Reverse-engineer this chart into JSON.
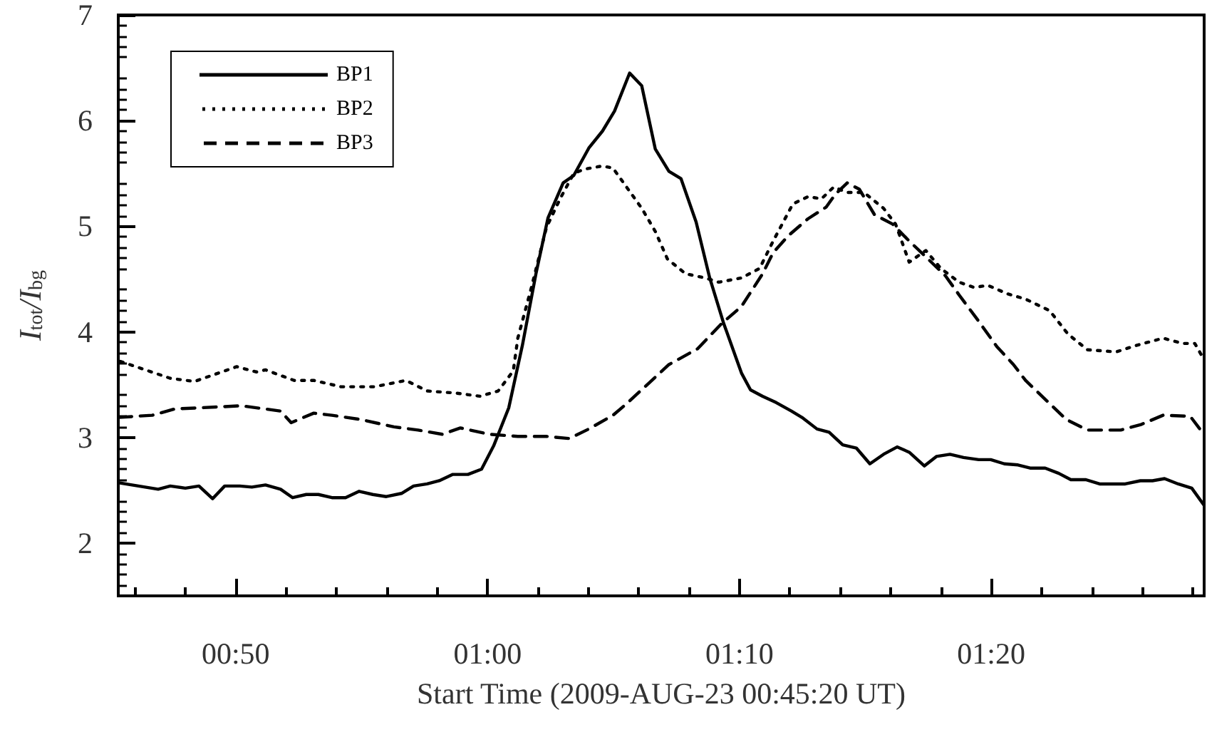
{
  "chart_data": {
    "type": "line",
    "xlabel": "Start Time (2009-AUG-23 00:45:20 UT)",
    "ylabel": "I$_{tot}$/I$_{bg}$",
    "legend": "top left",
    "marker": "none",
    "grid": false,
    "xlim": [
      0.7556,
      1.4742
    ],
    "xticks": [
      {
        "value": 0.7667,
        "label": null
      },
      {
        "value": 0.8,
        "label": null
      },
      {
        "value": 0.8333,
        "label": "00:50"
      },
      {
        "value": 0.8667,
        "label": null
      },
      {
        "value": 0.9,
        "label": null
      },
      {
        "value": 0.9333,
        "label": null
      },
      {
        "value": 0.9667,
        "label": null
      },
      {
        "value": 1.0,
        "label": "01:00"
      },
      {
        "value": 1.0333,
        "label": null
      },
      {
        "value": 1.0667,
        "label": null
      },
      {
        "value": 1.1,
        "label": null
      },
      {
        "value": 1.1333,
        "label": null
      },
      {
        "value": 1.1667,
        "label": "01:10"
      },
      {
        "value": 1.2,
        "label": null
      },
      {
        "value": 1.2333,
        "label": null
      },
      {
        "value": 1.2667,
        "label": null
      },
      {
        "value": 1.3,
        "label": null
      },
      {
        "value": 1.3333,
        "label": "01:20"
      },
      {
        "value": 1.3667,
        "label": null
      },
      {
        "value": 1.4,
        "label": null
      },
      {
        "value": 1.4333,
        "label": null
      },
      {
        "value": 1.4667,
        "label": null
      }
    ],
    "ylim": [
      1.5,
      7
    ],
    "yticks": [
      2,
      3,
      4,
      5,
      6,
      7
    ],
    "series": [
      {
        "name": "BP1",
        "color": "#000000",
        "line_style": "solid",
        "x": [
          0.756,
          0.782,
          0.79,
          0.8,
          0.809,
          0.818,
          0.826,
          0.836,
          0.844,
          0.853,
          0.863,
          0.871,
          0.88,
          0.888,
          0.897,
          0.906,
          0.915,
          0.924,
          0.933,
          0.943,
          0.951,
          0.96,
          0.968,
          0.977,
          0.987,
          0.996,
          1.004,
          1.014,
          1.023,
          1.032,
          1.04,
          1.05,
          1.057,
          1.067,
          1.076,
          1.084,
          1.094,
          1.102,
          1.111,
          1.12,
          1.128,
          1.138,
          1.147,
          1.156,
          1.168,
          1.174,
          1.182,
          1.191,
          1.201,
          1.208,
          1.218,
          1.226,
          1.235,
          1.244,
          1.253,
          1.262,
          1.271,
          1.279,
          1.289,
          1.297,
          1.306,
          1.315,
          1.325,
          1.333,
          1.342,
          1.351,
          1.359,
          1.369,
          1.378,
          1.386,
          1.396,
          1.405,
          1.422,
          1.432,
          1.44,
          1.448,
          1.457,
          1.466,
          1.474
        ],
        "values": [
          2.57,
          2.51,
          2.54,
          2.52,
          2.54,
          2.42,
          2.54,
          2.54,
          2.53,
          2.55,
          2.51,
          2.43,
          2.46,
          2.46,
          2.43,
          2.43,
          2.49,
          2.46,
          2.44,
          2.47,
          2.54,
          2.56,
          2.59,
          2.65,
          2.65,
          2.7,
          2.92,
          3.28,
          3.87,
          4.55,
          5.08,
          5.41,
          5.48,
          5.74,
          5.9,
          6.09,
          6.45,
          6.33,
          5.73,
          5.52,
          5.45,
          5.04,
          4.51,
          4.09,
          3.61,
          3.45,
          3.39,
          3.33,
          3.25,
          3.19,
          3.08,
          3.05,
          2.93,
          2.9,
          2.75,
          2.84,
          2.91,
          2.86,
          2.73,
          2.82,
          2.84,
          2.81,
          2.79,
          2.79,
          2.75,
          2.74,
          2.71,
          2.71,
          2.66,
          2.6,
          2.6,
          2.56,
          2.56,
          2.59,
          2.59,
          2.61,
          2.56,
          2.52,
          2.36
        ]
      },
      {
        "name": "BP2",
        "color": "#000000",
        "line_style": "dotted",
        "x": [
          0.757,
          0.79,
          0.806,
          0.834,
          0.847,
          0.853,
          0.872,
          0.885,
          0.903,
          0.925,
          0.946,
          0.96,
          0.979,
          0.995,
          1.007,
          1.017,
          1.02,
          1.029,
          1.039,
          1.048,
          1.057,
          1.064,
          1.076,
          1.083,
          1.092,
          1.102,
          1.111,
          1.119,
          1.131,
          1.144,
          1.153,
          1.168,
          1.18,
          1.189,
          1.202,
          1.212,
          1.221,
          1.229,
          1.238,
          1.249,
          1.262,
          1.27,
          1.279,
          1.29,
          1.3,
          1.312,
          1.322,
          1.331,
          1.344,
          1.356,
          1.372,
          1.384,
          1.397,
          1.416,
          1.429,
          1.447,
          1.46,
          1.468,
          1.474
        ],
        "values": [
          3.72,
          3.56,
          3.53,
          3.67,
          3.62,
          3.64,
          3.54,
          3.54,
          3.48,
          3.48,
          3.54,
          3.44,
          3.42,
          3.39,
          3.44,
          3.63,
          3.94,
          4.42,
          4.99,
          5.26,
          5.5,
          5.54,
          5.57,
          5.55,
          5.37,
          5.17,
          4.95,
          4.69,
          4.55,
          4.51,
          4.47,
          4.51,
          4.6,
          4.86,
          5.21,
          5.28,
          5.26,
          5.37,
          5.32,
          5.32,
          5.17,
          5.02,
          4.66,
          4.77,
          4.6,
          4.47,
          4.42,
          4.44,
          4.36,
          4.31,
          4.2,
          3.98,
          3.83,
          3.81,
          3.87,
          3.94,
          3.89,
          3.89,
          3.74
        ]
      },
      {
        "name": "BP3",
        "color": "#000000",
        "line_style": "dashed",
        "x": [
          0.756,
          0.778,
          0.793,
          0.809,
          0.837,
          0.863,
          0.87,
          0.885,
          0.897,
          0.916,
          0.938,
          0.954,
          0.97,
          0.982,
          1.001,
          1.02,
          1.039,
          1.054,
          1.067,
          1.083,
          1.092,
          1.12,
          1.139,
          1.155,
          1.168,
          1.182,
          1.189,
          1.199,
          1.212,
          1.224,
          1.23,
          1.238,
          1.246,
          1.256,
          1.268,
          1.279,
          1.29,
          1.303,
          1.312,
          1.325,
          1.337,
          1.348,
          1.356,
          1.372,
          1.383,
          1.397,
          1.419,
          1.432,
          1.447,
          1.465,
          1.474
        ],
        "values": [
          3.19,
          3.21,
          3.27,
          3.28,
          3.3,
          3.25,
          3.14,
          3.23,
          3.21,
          3.17,
          3.1,
          3.07,
          3.03,
          3.09,
          3.03,
          3.01,
          3.01,
          2.99,
          3.08,
          3.21,
          3.32,
          3.69,
          3.84,
          4.08,
          4.24,
          4.55,
          4.75,
          4.91,
          5.07,
          5.18,
          5.3,
          5.41,
          5.35,
          5.11,
          5.02,
          4.86,
          4.71,
          4.53,
          4.35,
          4.1,
          3.86,
          3.69,
          3.54,
          3.32,
          3.17,
          3.07,
          3.07,
          3.12,
          3.21,
          3.2,
          3.03
        ]
      }
    ]
  }
}
